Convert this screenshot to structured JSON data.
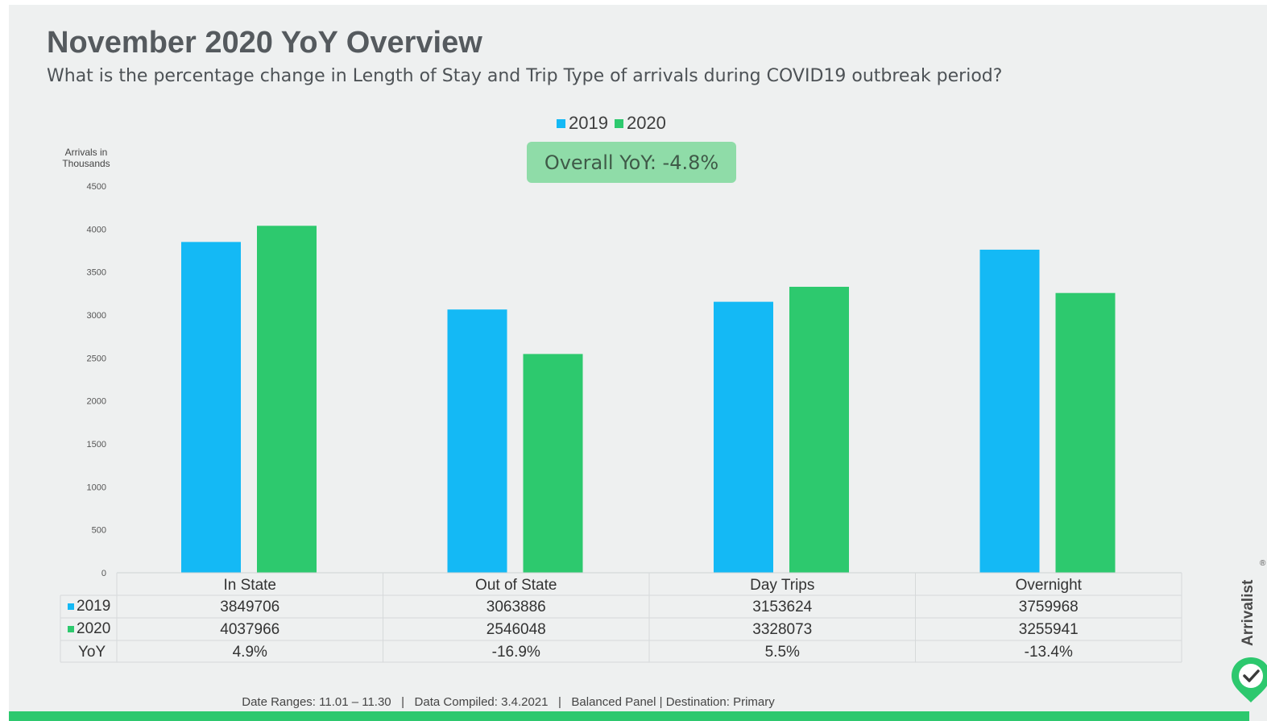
{
  "header": {
    "title": "November 2020 YoY Overview",
    "subtitle": "What is the percentage change in Length of Stay and Trip Type of arrivals during COVID19 outbreak period?"
  },
  "badge": {
    "text": "Overall YoY: -4.8%"
  },
  "footer": {
    "text": "Date Ranges: 11.01 – 11.30   |   Data Compiled: 3.4.2021   |   Balanced Panel | Destination: Primary"
  },
  "brand": {
    "name": "Arrivalist",
    "registered_mark": "®",
    "icon": "check-pin-icon"
  },
  "colors": {
    "series_2019": "#14b9f5",
    "series_2020": "#2dc96e",
    "accent": "#2dc86e"
  },
  "chart_data": {
    "type": "bar",
    "title": "November 2020 YoY Overview",
    "ylabel": "Arrivals in Thousands",
    "ylim": [
      0,
      4500
    ],
    "yticks": [
      0,
      500,
      1000,
      1500,
      2000,
      2500,
      3000,
      3500,
      4000,
      4500
    ],
    "grid": false,
    "legend": "top-center",
    "categories": [
      "In State",
      "Out of State",
      "Day Trips",
      "Overnight"
    ],
    "series": [
      {
        "name": "2019",
        "values": [
          3849706,
          3063886,
          3153624,
          3759968
        ],
        "display": [
          "3849706",
          "3063886",
          "3153624",
          "3759968"
        ]
      },
      {
        "name": "2020",
        "values": [
          4037966,
          2546048,
          3328073,
          3255941
        ],
        "display": [
          "4037966",
          "2546048",
          "3328073",
          "3255941"
        ]
      }
    ],
    "yoy": {
      "label": "YoY",
      "values": [
        "4.9%",
        "-16.9%",
        "5.5%",
        "-13.4%"
      ]
    }
  }
}
